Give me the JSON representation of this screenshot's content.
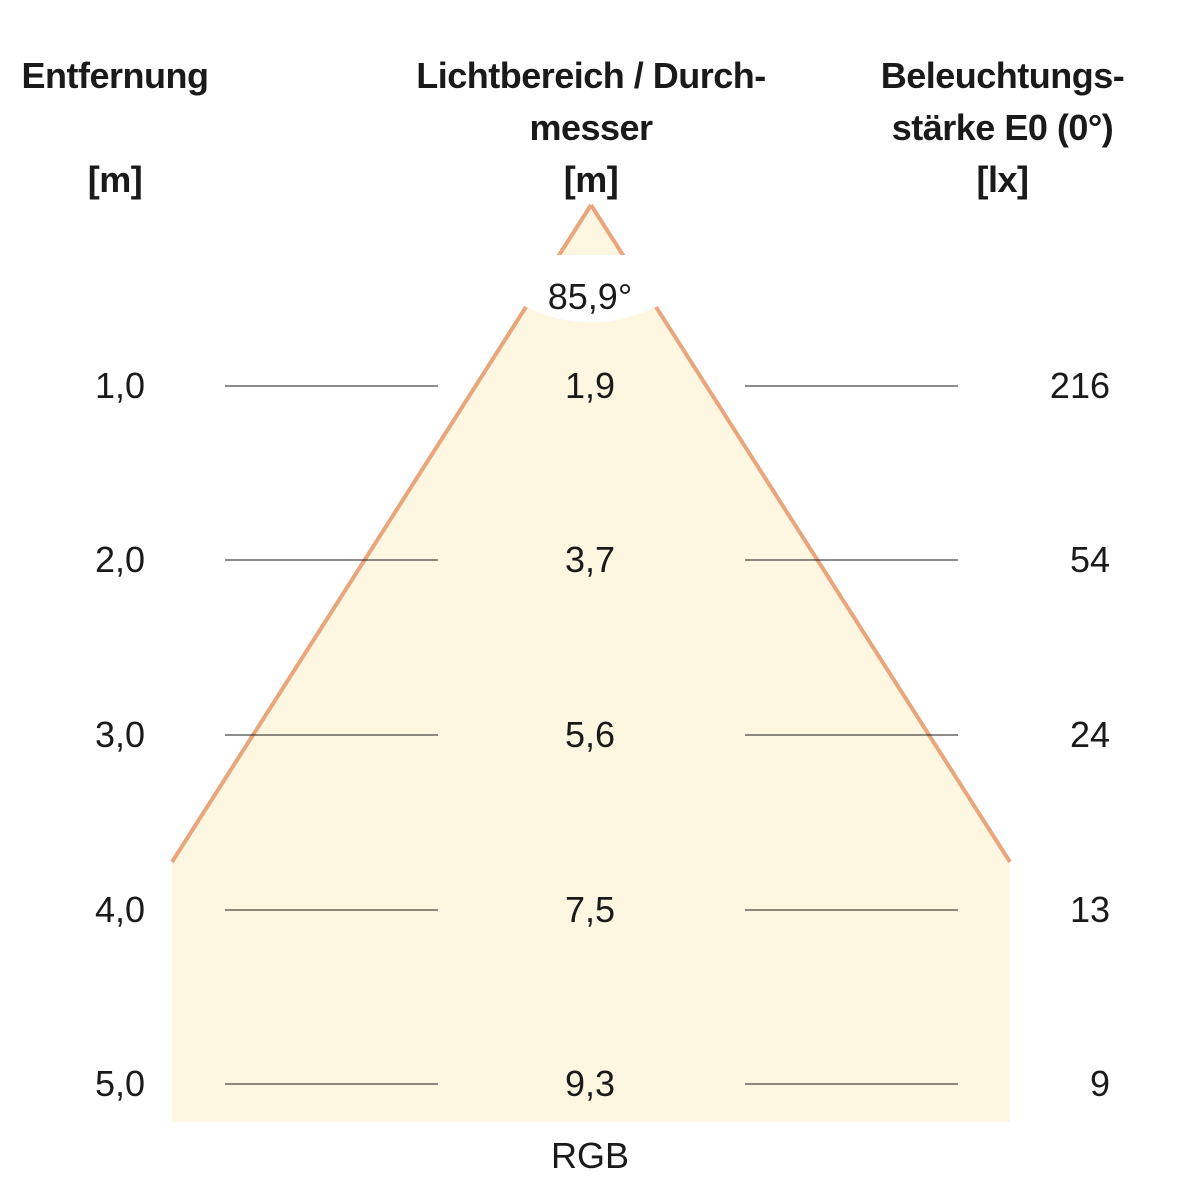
{
  "headers": {
    "distance": [
      "Entfernung",
      "",
      "[m]"
    ],
    "diameter": [
      "Lichtbereich / Durch-",
      "messer",
      "[m]"
    ],
    "illuminance": [
      "Beleuchtungs-",
      "stärke E0 (0°)",
      "[lx]"
    ]
  },
  "beam_angle": "85,9°",
  "footer_label": "RGB",
  "rows": [
    {
      "distance": "1,0",
      "diameter": "1,9",
      "illuminance": "216"
    },
    {
      "distance": "2,0",
      "diameter": "3,7",
      "illuminance": "54"
    },
    {
      "distance": "3,0",
      "diameter": "5,6",
      "illuminance": "24"
    },
    {
      "distance": "4,0",
      "diameter": "7,5",
      "illuminance": "13"
    },
    {
      "distance": "5,0",
      "diameter": "9,3",
      "illuminance": "9"
    }
  ],
  "colors": {
    "cone_fill": "#fdf6e0",
    "cone_edge": "#e9a67c",
    "guide_line": "#1a1a1a"
  }
}
